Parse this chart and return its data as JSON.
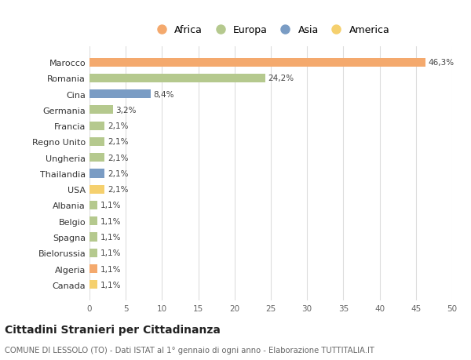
{
  "countries": [
    "Marocco",
    "Romania",
    "Cina",
    "Germania",
    "Francia",
    "Regno Unito",
    "Ungheria",
    "Thailandia",
    "USA",
    "Albania",
    "Belgio",
    "Spagna",
    "Bielorussia",
    "Algeria",
    "Canada"
  ],
  "values": [
    46.3,
    24.2,
    8.4,
    3.2,
    2.1,
    2.1,
    2.1,
    2.1,
    2.1,
    1.1,
    1.1,
    1.1,
    1.1,
    1.1,
    1.1
  ],
  "labels": [
    "46,3%",
    "24,2%",
    "8,4%",
    "3,2%",
    "2,1%",
    "2,1%",
    "2,1%",
    "2,1%",
    "2,1%",
    "1,1%",
    "1,1%",
    "1,1%",
    "1,1%",
    "1,1%",
    "1,1%"
  ],
  "continents": [
    "Africa",
    "Europa",
    "Asia",
    "Europa",
    "Europa",
    "Europa",
    "Europa",
    "Asia",
    "America",
    "Europa",
    "Europa",
    "Europa",
    "Europa",
    "Africa",
    "America"
  ],
  "colors": {
    "Africa": "#F4A96D",
    "Europa": "#B5C98E",
    "Asia": "#7A9CC4",
    "America": "#F5D06E"
  },
  "legend_order": [
    "Africa",
    "Europa",
    "Asia",
    "America"
  ],
  "title": "Cittadini Stranieri per Cittadinanza",
  "subtitle": "COMUNE DI LESSOLO (TO) - Dati ISTAT al 1° gennaio di ogni anno - Elaborazione TUTTITALIA.IT",
  "xlim": [
    0,
    50
  ],
  "xticks": [
    0,
    5,
    10,
    15,
    20,
    25,
    30,
    35,
    40,
    45,
    50
  ],
  "background_color": "#ffffff",
  "grid_color": "#dddddd"
}
